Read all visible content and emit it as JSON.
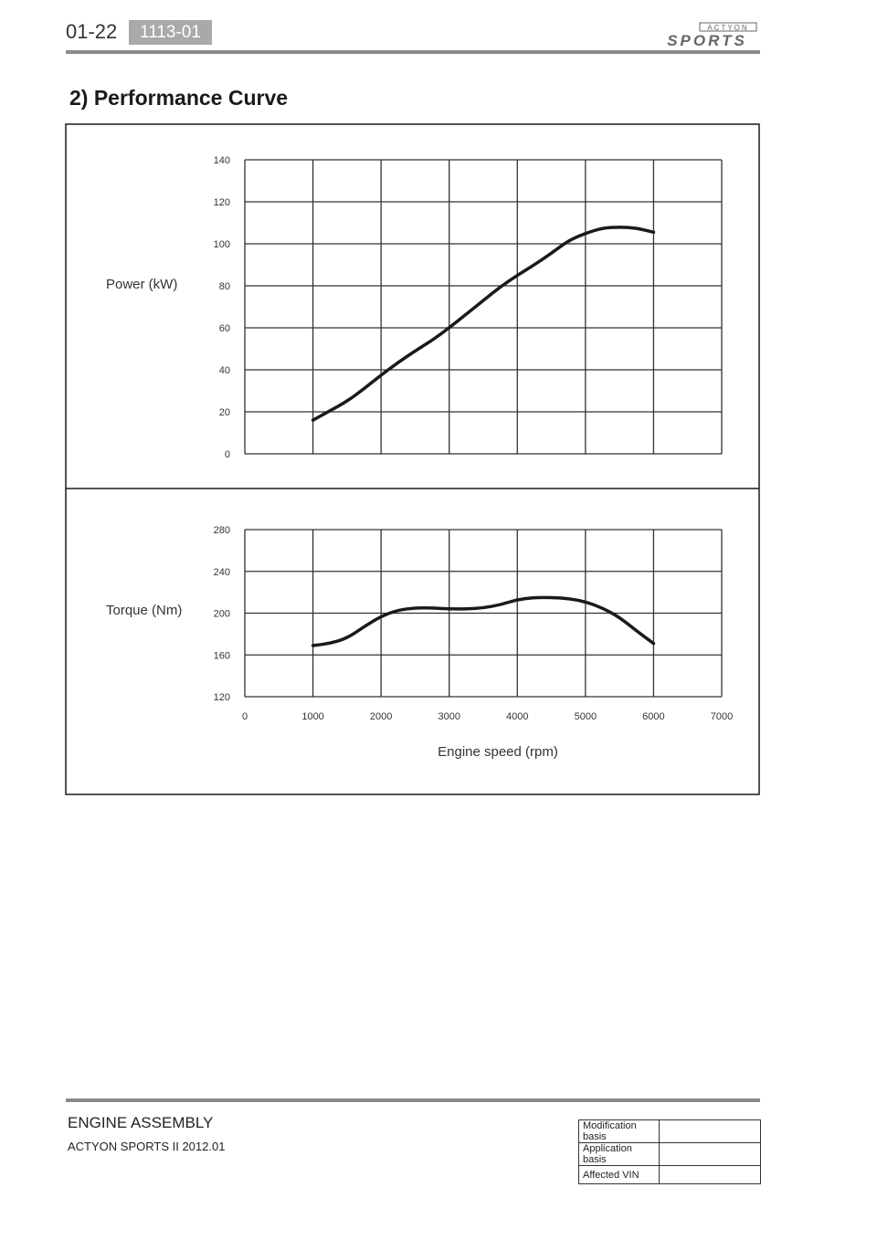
{
  "header": {
    "page_number": "01-22",
    "section_code": "1113-01",
    "brand_top": "ACTYON",
    "brand_bottom": "SPORTS"
  },
  "heading": "2) Performance Curve",
  "chart_data": [
    {
      "type": "line",
      "ylabel": "Power (kW)",
      "xlabel": "",
      "xlim": [
        0,
        7000
      ],
      "ylim": [
        0,
        140
      ],
      "x_ticks": [
        0,
        1000,
        2000,
        3000,
        4000,
        5000,
        6000,
        7000
      ],
      "y_ticks": [
        0,
        20,
        40,
        60,
        80,
        100,
        120,
        140
      ],
      "grid": true,
      "series": [
        {
          "x": [
            1000,
            1250,
            1500,
            1750,
            2000,
            2250,
            2500,
            2750,
            3000,
            3250,
            3500,
            3750,
            4000,
            4250,
            4500,
            4750,
            5000,
            5250,
            5500,
            5750,
            6000
          ],
          "y": [
            16,
            20.5,
            25,
            31,
            37.5,
            43.5,
            49,
            54,
            60,
            66.5,
            73,
            79.5,
            85,
            90,
            95.5,
            101.5,
            105,
            107.5,
            108,
            107.5,
            105.5
          ]
        }
      ]
    },
    {
      "type": "line",
      "ylabel": "Torque (Nm)",
      "xlabel": "Engine speed (rpm)",
      "xlim": [
        0,
        7000
      ],
      "ylim": [
        120,
        280
      ],
      "x_ticks": [
        0,
        1000,
        2000,
        3000,
        4000,
        5000,
        6000,
        7000
      ],
      "y_ticks": [
        120,
        160,
        200,
        240,
        280
      ],
      "grid": true,
      "series": [
        {
          "x": [
            1000,
            1250,
            1500,
            1750,
            2000,
            2250,
            2500,
            2750,
            3000,
            3250,
            3500,
            3750,
            4000,
            4250,
            4500,
            4750,
            5000,
            5250,
            5500,
            5750,
            6000
          ],
          "y": [
            169,
            171,
            176,
            187,
            197,
            203,
            205,
            205,
            204,
            204,
            205,
            208,
            213,
            215,
            215,
            214,
            211,
            205,
            196,
            183,
            171
          ]
        }
      ]
    }
  ],
  "footer": {
    "title": "ENGINE ASSEMBLY",
    "subtitle": "ACTYON SPORTS II 2012.01",
    "revision_rows": [
      {
        "label": "Modification basis",
        "value": ""
      },
      {
        "label": "Application basis",
        "value": ""
      },
      {
        "label": "Affected VIN",
        "value": ""
      }
    ]
  },
  "colors": {
    "line": "#1a1a1a",
    "grid": "#333333",
    "badge": "#a9a9a9",
    "rule": "#8a8a8a"
  }
}
